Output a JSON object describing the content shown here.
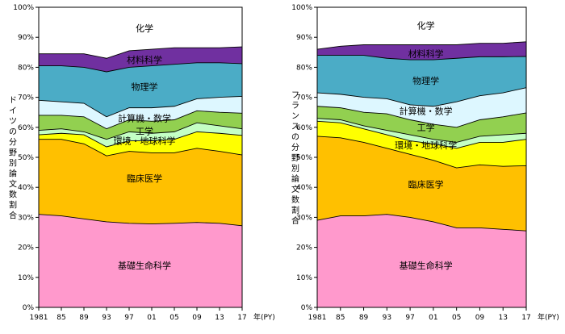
{
  "x_axis_unit": "年(PY)",
  "chart_data": [
    {
      "type": "area",
      "ylabel": "ドイツの分野別論文数割合",
      "ylim": [
        0,
        100
      ],
      "y_ticks": [
        "0%",
        "10%",
        "20%",
        "30%",
        "40%",
        "50%",
        "60%",
        "70%",
        "80%",
        "90%",
        "100%"
      ],
      "x_range": [
        1981,
        2017
      ],
      "x_ticks": [
        {
          "year": 1981,
          "label": "1981"
        },
        {
          "year": 1985,
          "label": "85"
        },
        {
          "year": 1989,
          "label": "89"
        },
        {
          "year": 1993,
          "label": "93"
        },
        {
          "year": 1997,
          "label": "97"
        },
        {
          "year": 2001,
          "label": "01"
        },
        {
          "year": 2005,
          "label": "05"
        },
        {
          "year": 2009,
          "label": "09"
        },
        {
          "year": 2013,
          "label": "13"
        },
        {
          "year": 2017,
          "label": "17"
        }
      ],
      "x": [
        1981,
        1985,
        1989,
        1993,
        1997,
        2001,
        2005,
        2009,
        2013,
        2017
      ],
      "series": [
        {
          "name": "基礎生命科学",
          "color": "#ff99cc",
          "label_color": "#000000",
          "top": [
            31,
            30.5,
            29.5,
            28.5,
            28,
            27.8,
            28,
            28.3,
            28,
            27.2
          ]
        },
        {
          "name": "臨床医学",
          "color": "#ffc000",
          "label_color": "#000000",
          "top": [
            56,
            56,
            54.5,
            50.5,
            52,
            51.5,
            51.5,
            53,
            52,
            50.8
          ]
        },
        {
          "name": "環境・地球科学",
          "color": "#ffff00",
          "label_color": "#000000",
          "top": [
            57.5,
            58,
            57.5,
            53.5,
            55.5,
            55.5,
            56,
            58.5,
            58,
            57.3
          ]
        },
        {
          "name": "工学",
          "color": "#c4ffc4",
          "label_color": "#000000",
          "top": [
            59,
            59.5,
            58.5,
            56,
            58.5,
            58,
            58.5,
            61.5,
            60.5,
            59.5
          ]
        },
        {
          "name": "計算機・数学",
          "color": "#92d050",
          "label_color": "#000000",
          "top": [
            64,
            64,
            63.5,
            59.5,
            62.5,
            62,
            62.5,
            65.5,
            65,
            64.7
          ]
        },
        {
          "name": "",
          "color": "#ddf7ff",
          "label_color": "#000000",
          "top": [
            69,
            68.5,
            68,
            63.5,
            66.5,
            66.5,
            67,
            69.5,
            70,
            70.3
          ]
        },
        {
          "name": "物理学",
          "color": "#4bacc6",
          "label_color": "#000000",
          "top": [
            80.5,
            80.5,
            80,
            78.5,
            80,
            80.5,
            81,
            81.5,
            81.5,
            81.2
          ]
        },
        {
          "name": "材料科学",
          "color": "#7030a0",
          "label_color": "#ffffff",
          "top": [
            84.5,
            84.5,
            84.5,
            83,
            85.5,
            86,
            86.5,
            86.5,
            86.5,
            86.8
          ]
        },
        {
          "name": "化学",
          "color": "#ffffff",
          "label_color": "#000000",
          "top": [
            100,
            100,
            100,
            100,
            100,
            100,
            100,
            100,
            100,
            100
          ]
        }
      ]
    },
    {
      "type": "area",
      "ylabel": "フランスの分野別論文数割合",
      "ylim": [
        0,
        100
      ],
      "y_ticks": [
        "0%",
        "10%",
        "20%",
        "30%",
        "40%",
        "50%",
        "60%",
        "70%",
        "80%",
        "90%",
        "100%"
      ],
      "x_range": [
        1981,
        2017
      ],
      "x_ticks": [
        {
          "year": 1981,
          "label": "1981"
        },
        {
          "year": 1985,
          "label": "85"
        },
        {
          "year": 1989,
          "label": "89"
        },
        {
          "year": 1993,
          "label": "93"
        },
        {
          "year": 1997,
          "label": "97"
        },
        {
          "year": 2001,
          "label": "01"
        },
        {
          "year": 2005,
          "label": "05"
        },
        {
          "year": 2009,
          "label": "09"
        },
        {
          "year": 2013,
          "label": "13"
        },
        {
          "year": 2017,
          "label": "17"
        }
      ],
      "x": [
        1981,
        1985,
        1989,
        1993,
        1997,
        2001,
        2005,
        2009,
        2013,
        2017
      ],
      "series": [
        {
          "name": "基礎生命科学",
          "color": "#ff99cc",
          "label_color": "#000000",
          "top": [
            29,
            30.5,
            30.5,
            31,
            30,
            28.5,
            26.5,
            26.5,
            26,
            25.5
          ]
        },
        {
          "name": "臨床医学",
          "color": "#ffc000",
          "label_color": "#000000",
          "top": [
            57,
            56.5,
            55,
            53,
            51,
            49,
            46.5,
            47.5,
            47,
            47.2
          ]
        },
        {
          "name": "環境・地球科学",
          "color": "#ffff00",
          "label_color": "#000000",
          "top": [
            62,
            61.5,
            59.5,
            57.5,
            55.5,
            54.5,
            53,
            55,
            55,
            56
          ]
        },
        {
          "name": "工学",
          "color": "#c4ffc4",
          "label_color": "#000000",
          "top": [
            63,
            62.5,
            60.5,
            59,
            57.5,
            56,
            55,
            57,
            57.5,
            58
          ]
        },
        {
          "name": "計算機・数学",
          "color": "#92d050",
          "label_color": "#000000",
          "top": [
            67,
            66.5,
            65,
            64.5,
            62.5,
            61,
            60,
            62.5,
            63.5,
            64.8
          ]
        },
        {
          "name": "",
          "color": "#ddf7ff",
          "label_color": "#000000",
          "top": [
            71.5,
            71,
            70,
            69.5,
            67.5,
            67,
            68.5,
            70.5,
            71.5,
            73.2
          ]
        },
        {
          "name": "物理学",
          "color": "#4bacc6",
          "label_color": "#000000",
          "top": [
            84,
            84,
            84,
            83,
            82.5,
            82.5,
            83,
            83.5,
            83.5,
            83.6
          ]
        },
        {
          "name": "材料科学",
          "color": "#7030a0",
          "label_color": "#ffffff",
          "top": [
            86,
            87,
            87.5,
            87.5,
            87.5,
            87.5,
            87.5,
            88,
            88,
            88.5
          ]
        },
        {
          "name": "化学",
          "color": "#ffffff",
          "label_color": "#000000",
          "top": [
            100,
            100,
            100,
            100,
            100,
            100,
            100,
            100,
            100,
            100
          ]
        }
      ]
    }
  ]
}
